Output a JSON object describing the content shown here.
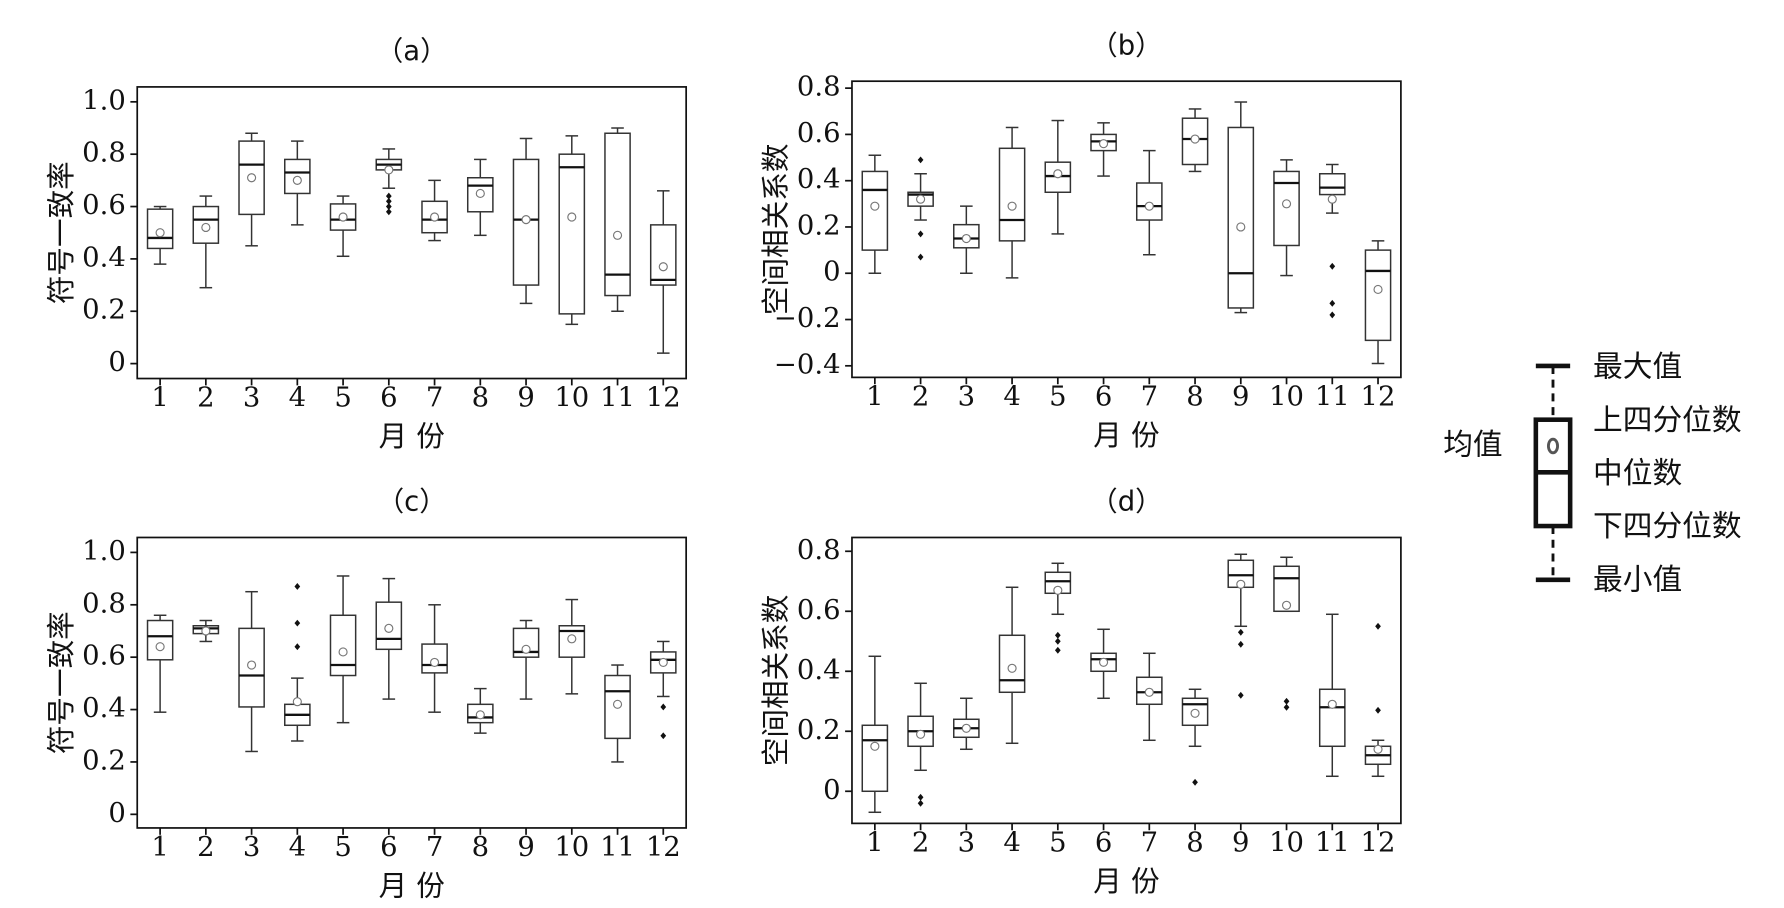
{
  "chart_data": [
    {
      "type": "box",
      "title": "（a）",
      "xlabel": "月 份",
      "ylabel": "符号一致率",
      "categories": [
        "1",
        "2",
        "3",
        "4",
        "5",
        "6",
        "7",
        "8",
        "9",
        "10",
        "11",
        "12"
      ],
      "min": [
        0.38,
        0.29,
        0.45,
        0.53,
        0.41,
        0.67,
        0.47,
        0.49,
        0.23,
        0.15,
        0.2,
        0.04
      ],
      "q1": [
        0.44,
        0.46,
        0.57,
        0.65,
        0.51,
        0.74,
        0.5,
        0.58,
        0.3,
        0.19,
        0.26,
        0.3
      ],
      "median": [
        0.48,
        0.55,
        0.76,
        0.73,
        0.55,
        0.76,
        0.55,
        0.68,
        0.55,
        0.75,
        0.34,
        0.32
      ],
      "q3": [
        0.59,
        0.6,
        0.85,
        0.78,
        0.61,
        0.78,
        0.62,
        0.71,
        0.78,
        0.8,
        0.88,
        0.53
      ],
      "max": [
        0.6,
        0.64,
        0.88,
        0.85,
        0.64,
        0.82,
        0.7,
        0.78,
        0.86,
        0.87,
        0.9,
        0.66
      ],
      "mean": [
        0.5,
        0.52,
        0.71,
        0.7,
        0.56,
        0.74,
        0.56,
        0.65,
        0.55,
        0.56,
        0.49,
        0.37
      ],
      "outliers": [
        [],
        [],
        [],
        [],
        [],
        [
          0.64,
          0.62,
          0.6,
          0.58
        ],
        [],
        [],
        [],
        [],
        [],
        []
      ],
      "ylim": [
        -0.057,
        1.057
      ],
      "yticks": [
        0,
        0.2,
        0.4,
        0.6,
        0.8,
        {
          "value": 1,
          "label": "1.0"
        }
      ]
    },
    {
      "type": "box",
      "title": "（b）",
      "xlabel": "月 份",
      "ylabel": "空间相关系数",
      "categories": [
        "1",
        "2",
        "3",
        "4",
        "5",
        "6",
        "7",
        "8",
        "9",
        "10",
        "11",
        "12"
      ],
      "min": [
        0,
        0.23,
        0,
        -0.02,
        0.17,
        0.42,
        0.08,
        0.44,
        -0.17,
        -0.01,
        0.26,
        -0.39
      ],
      "q1": [
        0.1,
        0.29,
        0.11,
        0.14,
        0.35,
        0.53,
        0.23,
        0.47,
        -0.15,
        0.12,
        0.34,
        -0.29
      ],
      "median": [
        0.36,
        0.34,
        0.15,
        0.23,
        0.42,
        0.57,
        0.29,
        0.58,
        0,
        0.39,
        0.37,
        0.01
      ],
      "q3": [
        0.44,
        0.35,
        0.21,
        0.54,
        0.48,
        0.6,
        0.39,
        0.67,
        0.63,
        0.44,
        0.43,
        0.1
      ],
      "max": [
        0.51,
        0.43,
        0.29,
        0.63,
        0.66,
        0.65,
        0.53,
        0.71,
        0.74,
        0.49,
        0.47,
        0.14
      ],
      "mean": [
        0.29,
        0.32,
        0.15,
        0.29,
        0.43,
        0.56,
        0.29,
        0.58,
        0.2,
        0.3,
        0.32,
        -0.07
      ],
      "outliers": [
        [],
        [
          0.49,
          0.17,
          0.07
        ],
        [],
        [],
        [],
        [],
        [],
        [],
        [],
        [],
        [
          0.03,
          -0.13,
          -0.18
        ],
        []
      ],
      "ylim": [
        -0.45,
        0.83
      ],
      "yticks": [
        {
          "value": -0.4,
          "label": "−0.4"
        },
        {
          "value": -0.2,
          "label": "−0.2"
        },
        0,
        0.2,
        0.4,
        0.6,
        0.8
      ]
    },
    {
      "type": "box",
      "title": "（c）",
      "xlabel": "月 份",
      "ylabel": "符号一致率",
      "categories": [
        "1",
        "2",
        "3",
        "4",
        "5",
        "6",
        "7",
        "8",
        "9",
        "10",
        "11",
        "12"
      ],
      "min": [
        0.39,
        0.66,
        0.24,
        0.28,
        0.35,
        0.44,
        0.39,
        0.31,
        0.44,
        0.46,
        0.2,
        0.45
      ],
      "q1": [
        0.59,
        0.69,
        0.41,
        0.34,
        0.53,
        0.63,
        0.54,
        0.35,
        0.6,
        0.6,
        0.29,
        0.54
      ],
      "median": [
        0.68,
        0.71,
        0.53,
        0.38,
        0.57,
        0.67,
        0.57,
        0.37,
        0.62,
        0.7,
        0.47,
        0.59
      ],
      "q3": [
        0.74,
        0.72,
        0.71,
        0.42,
        0.76,
        0.81,
        0.65,
        0.42,
        0.71,
        0.72,
        0.53,
        0.62
      ],
      "max": [
        0.76,
        0.74,
        0.85,
        0.52,
        0.91,
        0.9,
        0.8,
        0.48,
        0.74,
        0.82,
        0.57,
        0.66
      ],
      "mean": [
        0.64,
        0.7,
        0.57,
        0.43,
        0.62,
        0.71,
        0.58,
        0.38,
        0.63,
        0.67,
        0.42,
        0.58
      ],
      "outliers": [
        [],
        [],
        [],
        [
          0.87,
          0.73,
          0.64
        ],
        [],
        [],
        [],
        [],
        [],
        [],
        [],
        [
          0.41,
          0.3
        ]
      ],
      "ylim": [
        -0.052,
        1.057
      ],
      "yticks": [
        0,
        0.2,
        0.4,
        0.6,
        0.8,
        {
          "value": 1,
          "label": "1.0"
        }
      ]
    },
    {
      "type": "box",
      "title": "（d）",
      "xlabel": "月 份",
      "ylabel": "空间相关系数",
      "categories": [
        "1",
        "2",
        "3",
        "4",
        "5",
        "6",
        "7",
        "8",
        "9",
        "10",
        "11",
        "12"
      ],
      "min": [
        -0.07,
        0.07,
        0.14,
        0.16,
        0.59,
        0.31,
        0.17,
        0.15,
        0.55,
        0.6,
        0.05,
        0.05
      ],
      "q1": [
        0,
        0.15,
        0.18,
        0.33,
        0.66,
        0.4,
        0.29,
        0.22,
        0.68,
        0.6,
        0.15,
        0.09
      ],
      "median": [
        0.17,
        0.2,
        0.21,
        0.37,
        0.7,
        0.44,
        0.33,
        0.29,
        0.72,
        0.71,
        0.28,
        0.12
      ],
      "q3": [
        0.22,
        0.25,
        0.24,
        0.52,
        0.73,
        0.46,
        0.38,
        0.31,
        0.77,
        0.75,
        0.34,
        0.15
      ],
      "max": [
        0.45,
        0.36,
        0.31,
        0.68,
        0.76,
        0.54,
        0.46,
        0.34,
        0.79,
        0.78,
        0.59,
        0.17
      ],
      "mean": [
        0.15,
        0.19,
        0.21,
        0.41,
        0.67,
        0.43,
        0.33,
        0.26,
        0.69,
        0.62,
        0.29,
        0.14
      ],
      "outliers": [
        [],
        [
          -0.02,
          -0.04
        ],
        [],
        [],
        [
          0.52,
          0.5,
          0.47
        ],
        [],
        [],
        [
          0.03
        ],
        [
          0.53,
          0.49,
          0.32
        ],
        [
          0.3,
          0.28
        ],
        [],
        [
          0.55,
          0.27
        ]
      ],
      "ylim": [
        -0.107,
        0.846
      ],
      "yticks": [
        0,
        0.2,
        0.4,
        0.6,
        0.8
      ]
    }
  ],
  "legend": {
    "mean": "均值",
    "labels": [
      "最大值",
      "上四分位数",
      "中位数",
      "下四分位数",
      "最小值"
    ]
  }
}
